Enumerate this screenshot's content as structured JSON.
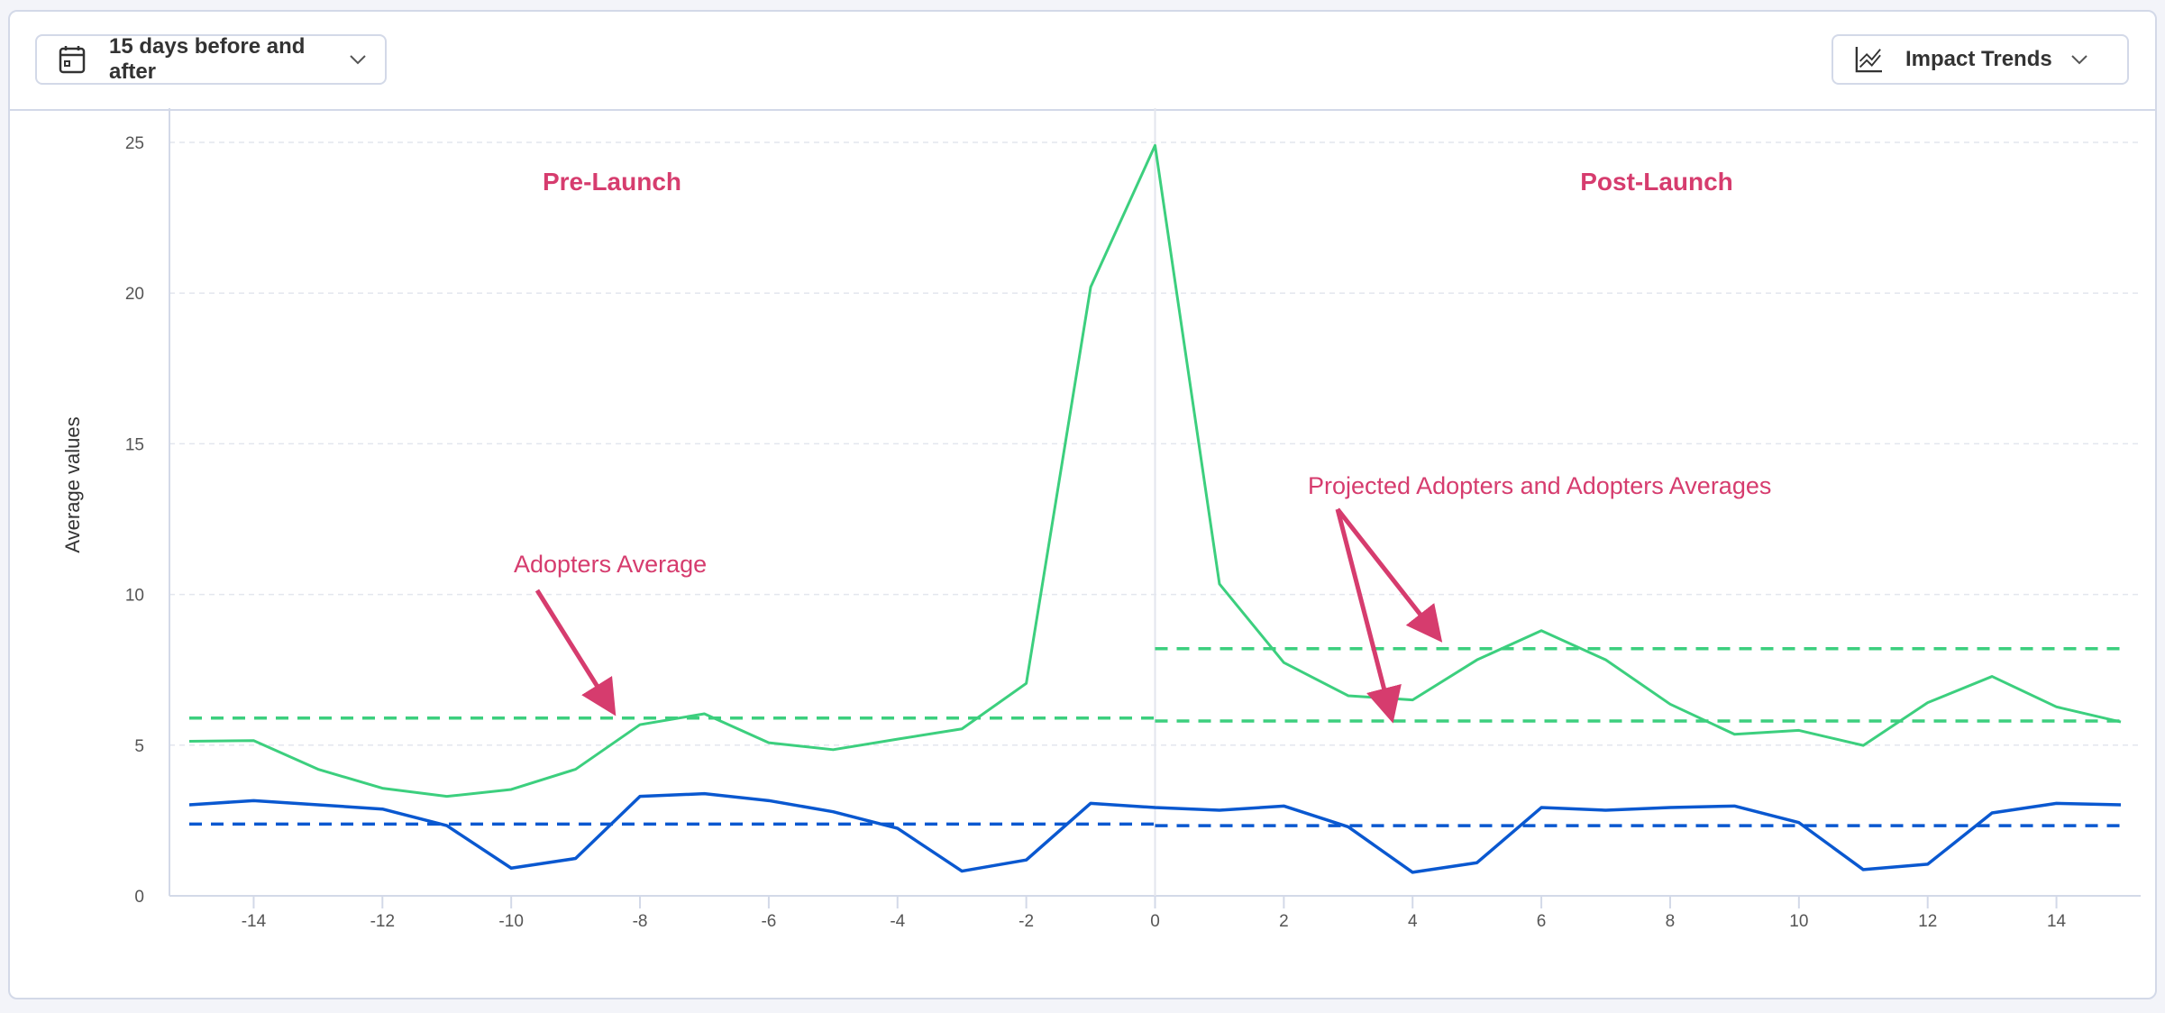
{
  "toolbar": {
    "range_label": "15 days before and after",
    "range_icon": "calendar-icon",
    "view_label": "Impact Trends",
    "view_icon": "line-chart-icon"
  },
  "colors": {
    "adopters": "#3ccf7e",
    "baseline": "#0a58d0",
    "annotation": "#d63c6e"
  },
  "chart_data": {
    "type": "line",
    "xlabel": "",
    "ylabel": "Average values",
    "xlim": [
      -15,
      15
    ],
    "ylim": [
      0,
      25
    ],
    "x_ticks": [
      -14,
      -12,
      -10,
      -8,
      -6,
      -4,
      -2,
      0,
      2,
      4,
      6,
      8,
      10,
      12,
      14
    ],
    "y_ticks": [
      0,
      5,
      10,
      15,
      20,
      25
    ],
    "grid": "horizontal dashed",
    "x": [
      -15,
      -14,
      -13,
      -12,
      -11,
      -10,
      -9,
      -8,
      -7,
      -6,
      -5,
      -4,
      -3,
      -2,
      -1,
      0,
      1,
      2,
      3,
      4,
      5,
      6,
      7,
      8,
      9,
      10,
      11,
      12,
      13,
      14,
      15
    ],
    "series": [
      {
        "color": "#3ccf7e",
        "values": [
          5.13,
          5.15,
          4.2,
          3.57,
          3.3,
          3.53,
          4.2,
          5.68,
          6.04,
          5.08,
          4.85,
          5.2,
          5.54,
          7.05,
          20.2,
          24.9,
          10.35,
          7.74,
          6.64,
          6.5,
          7.83,
          8.8,
          7.83,
          6.36,
          5.36,
          5.49,
          4.99,
          6.41,
          7.28,
          6.27,
          5.77
        ]
      },
      {
        "color": "#0a58d0",
        "values": [
          3.02,
          3.16,
          3.02,
          2.88,
          2.33,
          0.92,
          1.24,
          3.3,
          3.39,
          3.16,
          2.79,
          2.24,
          0.82,
          1.19,
          3.07,
          2.93,
          2.84,
          2.98,
          2.29,
          0.78,
          1.1,
          2.93,
          2.84,
          2.93,
          2.98,
          2.43,
          0.87,
          1.05,
          2.75,
          3.07,
          3.02
        ]
      }
    ],
    "reference_lines": [
      {
        "color": "#3ccf7e",
        "value": 5.9,
        "x_range": [
          -15,
          0
        ]
      },
      {
        "color": "#3ccf7e",
        "value": 8.2,
        "x_range": [
          0,
          15
        ]
      },
      {
        "color": "#3ccf7e",
        "value": 5.8,
        "x_range": [
          0,
          15
        ]
      },
      {
        "color": "#0a58d0",
        "value": 2.38,
        "x_range": [
          -15,
          0
        ]
      },
      {
        "color": "#0a58d0",
        "value": 2.33,
        "x_range": [
          0,
          15
        ]
      }
    ],
    "divider_x": 0,
    "annotations": {
      "pre_launch": "Pre-Launch",
      "post_launch": "Post-Launch",
      "adopters_average": "Adopters Average",
      "projected": "Projected Adopters and Adopters Averages"
    }
  }
}
